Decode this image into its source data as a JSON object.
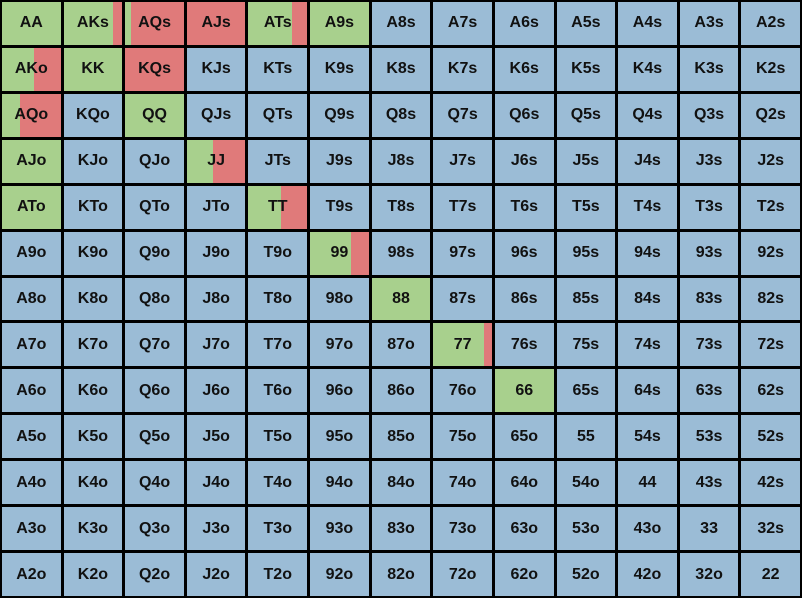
{
  "colors": {
    "green": "#a8d08d",
    "red": "#e07a7a",
    "blue": "#9bbcd6"
  },
  "hand_matrix": {
    "rows": [
      [
        {
          "hand": "AA",
          "green": 1,
          "red": 0
        },
        {
          "hand": "AKs",
          "green": 0.85,
          "red": 0.15
        },
        {
          "hand": "AQs",
          "green": 0.1,
          "red": 0.9
        },
        {
          "hand": "AJs",
          "green": 0,
          "red": 1
        },
        {
          "hand": "ATs",
          "green": 0.75,
          "red": 0.25
        },
        {
          "hand": "A9s",
          "green": 1,
          "red": 0
        },
        {
          "hand": "A8s",
          "green": 0,
          "red": 0
        },
        {
          "hand": "A7s",
          "green": 0,
          "red": 0
        },
        {
          "hand": "A6s",
          "green": 0,
          "red": 0
        },
        {
          "hand": "A5s",
          "green": 0,
          "red": 0
        },
        {
          "hand": "A4s",
          "green": 0,
          "red": 0
        },
        {
          "hand": "A3s",
          "green": 0,
          "red": 0
        },
        {
          "hand": "A2s",
          "green": 0,
          "red": 0
        }
      ],
      [
        {
          "hand": "AKo",
          "green": 0.55,
          "red": 0.45
        },
        {
          "hand": "KK",
          "green": 1,
          "red": 0
        },
        {
          "hand": "KQs",
          "green": 0,
          "red": 1
        },
        {
          "hand": "KJs",
          "green": 0,
          "red": 0
        },
        {
          "hand": "KTs",
          "green": 0,
          "red": 0
        },
        {
          "hand": "K9s",
          "green": 0,
          "red": 0
        },
        {
          "hand": "K8s",
          "green": 0,
          "red": 0
        },
        {
          "hand": "K7s",
          "green": 0,
          "red": 0
        },
        {
          "hand": "K6s",
          "green": 0,
          "red": 0
        },
        {
          "hand": "K5s",
          "green": 0,
          "red": 0
        },
        {
          "hand": "K4s",
          "green": 0,
          "red": 0
        },
        {
          "hand": "K3s",
          "green": 0,
          "red": 0
        },
        {
          "hand": "K2s",
          "green": 0,
          "red": 0
        }
      ],
      [
        {
          "hand": "AQo",
          "green": 0.3,
          "red": 0.7
        },
        {
          "hand": "KQo",
          "green": 0,
          "red": 0
        },
        {
          "hand": "QQ",
          "green": 1,
          "red": 0
        },
        {
          "hand": "QJs",
          "green": 0,
          "red": 0
        },
        {
          "hand": "QTs",
          "green": 0,
          "red": 0
        },
        {
          "hand": "Q9s",
          "green": 0,
          "red": 0
        },
        {
          "hand": "Q8s",
          "green": 0,
          "red": 0
        },
        {
          "hand": "Q7s",
          "green": 0,
          "red": 0
        },
        {
          "hand": "Q6s",
          "green": 0,
          "red": 0
        },
        {
          "hand": "Q5s",
          "green": 0,
          "red": 0
        },
        {
          "hand": "Q4s",
          "green": 0,
          "red": 0
        },
        {
          "hand": "Q3s",
          "green": 0,
          "red": 0
        },
        {
          "hand": "Q2s",
          "green": 0,
          "red": 0
        }
      ],
      [
        {
          "hand": "AJo",
          "green": 1,
          "red": 0
        },
        {
          "hand": "KJo",
          "green": 0,
          "red": 0
        },
        {
          "hand": "QJo",
          "green": 0,
          "red": 0
        },
        {
          "hand": "JJ",
          "green": 0.45,
          "red": 0.55
        },
        {
          "hand": "JTs",
          "green": 0,
          "red": 0
        },
        {
          "hand": "J9s",
          "green": 0,
          "red": 0
        },
        {
          "hand": "J8s",
          "green": 0,
          "red": 0
        },
        {
          "hand": "J7s",
          "green": 0,
          "red": 0
        },
        {
          "hand": "J6s",
          "green": 0,
          "red": 0
        },
        {
          "hand": "J5s",
          "green": 0,
          "red": 0
        },
        {
          "hand": "J4s",
          "green": 0,
          "red": 0
        },
        {
          "hand": "J3s",
          "green": 0,
          "red": 0
        },
        {
          "hand": "J2s",
          "green": 0,
          "red": 0
        }
      ],
      [
        {
          "hand": "ATo",
          "green": 1,
          "red": 0
        },
        {
          "hand": "KTo",
          "green": 0,
          "red": 0
        },
        {
          "hand": "QTo",
          "green": 0,
          "red": 0
        },
        {
          "hand": "JTo",
          "green": 0,
          "red": 0
        },
        {
          "hand": "TT",
          "green": 0.55,
          "red": 0.45
        },
        {
          "hand": "T9s",
          "green": 0,
          "red": 0
        },
        {
          "hand": "T8s",
          "green": 0,
          "red": 0
        },
        {
          "hand": "T7s",
          "green": 0,
          "red": 0
        },
        {
          "hand": "T6s",
          "green": 0,
          "red": 0
        },
        {
          "hand": "T5s",
          "green": 0,
          "red": 0
        },
        {
          "hand": "T4s",
          "green": 0,
          "red": 0
        },
        {
          "hand": "T3s",
          "green": 0,
          "red": 0
        },
        {
          "hand": "T2s",
          "green": 0,
          "red": 0
        }
      ],
      [
        {
          "hand": "A9o",
          "green": 0,
          "red": 0
        },
        {
          "hand": "K9o",
          "green": 0,
          "red": 0
        },
        {
          "hand": "Q9o",
          "green": 0,
          "red": 0
        },
        {
          "hand": "J9o",
          "green": 0,
          "red": 0
        },
        {
          "hand": "T9o",
          "green": 0,
          "red": 0
        },
        {
          "hand": "99",
          "green": 0.7,
          "red": 0.3
        },
        {
          "hand": "98s",
          "green": 0,
          "red": 0
        },
        {
          "hand": "97s",
          "green": 0,
          "red": 0
        },
        {
          "hand": "96s",
          "green": 0,
          "red": 0
        },
        {
          "hand": "95s",
          "green": 0,
          "red": 0
        },
        {
          "hand": "94s",
          "green": 0,
          "red": 0
        },
        {
          "hand": "93s",
          "green": 0,
          "red": 0
        },
        {
          "hand": "92s",
          "green": 0,
          "red": 0
        }
      ],
      [
        {
          "hand": "A8o",
          "green": 0,
          "red": 0
        },
        {
          "hand": "K8o",
          "green": 0,
          "red": 0
        },
        {
          "hand": "Q8o",
          "green": 0,
          "red": 0
        },
        {
          "hand": "J8o",
          "green": 0,
          "red": 0
        },
        {
          "hand": "T8o",
          "green": 0,
          "red": 0
        },
        {
          "hand": "98o",
          "green": 0,
          "red": 0
        },
        {
          "hand": "88",
          "green": 1,
          "red": 0
        },
        {
          "hand": "87s",
          "green": 0,
          "red": 0
        },
        {
          "hand": "86s",
          "green": 0,
          "red": 0
        },
        {
          "hand": "85s",
          "green": 0,
          "red": 0
        },
        {
          "hand": "84s",
          "green": 0,
          "red": 0
        },
        {
          "hand": "83s",
          "green": 0,
          "red": 0
        },
        {
          "hand": "82s",
          "green": 0,
          "red": 0
        }
      ],
      [
        {
          "hand": "A7o",
          "green": 0,
          "red": 0
        },
        {
          "hand": "K7o",
          "green": 0,
          "red": 0
        },
        {
          "hand": "Q7o",
          "green": 0,
          "red": 0
        },
        {
          "hand": "J7o",
          "green": 0,
          "red": 0
        },
        {
          "hand": "T7o",
          "green": 0,
          "red": 0
        },
        {
          "hand": "97o",
          "green": 0,
          "red": 0
        },
        {
          "hand": "87o",
          "green": 0,
          "red": 0
        },
        {
          "hand": "77",
          "green": 0.87,
          "red": 0.13
        },
        {
          "hand": "76s",
          "green": 0,
          "red": 0
        },
        {
          "hand": "75s",
          "green": 0,
          "red": 0
        },
        {
          "hand": "74s",
          "green": 0,
          "red": 0
        },
        {
          "hand": "73s",
          "green": 0,
          "red": 0
        },
        {
          "hand": "72s",
          "green": 0,
          "red": 0
        }
      ],
      [
        {
          "hand": "A6o",
          "green": 0,
          "red": 0
        },
        {
          "hand": "K6o",
          "green": 0,
          "red": 0
        },
        {
          "hand": "Q6o",
          "green": 0,
          "red": 0
        },
        {
          "hand": "J6o",
          "green": 0,
          "red": 0
        },
        {
          "hand": "T6o",
          "green": 0,
          "red": 0
        },
        {
          "hand": "96o",
          "green": 0,
          "red": 0
        },
        {
          "hand": "86o",
          "green": 0,
          "red": 0
        },
        {
          "hand": "76o",
          "green": 0,
          "red": 0
        },
        {
          "hand": "66",
          "green": 1,
          "red": 0
        },
        {
          "hand": "65s",
          "green": 0,
          "red": 0
        },
        {
          "hand": "64s",
          "green": 0,
          "red": 0
        },
        {
          "hand": "63s",
          "green": 0,
          "red": 0
        },
        {
          "hand": "62s",
          "green": 0,
          "red": 0
        }
      ],
      [
        {
          "hand": "A5o",
          "green": 0,
          "red": 0
        },
        {
          "hand": "K5o",
          "green": 0,
          "red": 0
        },
        {
          "hand": "Q5o",
          "green": 0,
          "red": 0
        },
        {
          "hand": "J5o",
          "green": 0,
          "red": 0
        },
        {
          "hand": "T5o",
          "green": 0,
          "red": 0
        },
        {
          "hand": "95o",
          "green": 0,
          "red": 0
        },
        {
          "hand": "85o",
          "green": 0,
          "red": 0
        },
        {
          "hand": "75o",
          "green": 0,
          "red": 0
        },
        {
          "hand": "65o",
          "green": 0,
          "red": 0
        },
        {
          "hand": "55",
          "green": 0,
          "red": 0
        },
        {
          "hand": "54s",
          "green": 0,
          "red": 0
        },
        {
          "hand": "53s",
          "green": 0,
          "red": 0
        },
        {
          "hand": "52s",
          "green": 0,
          "red": 0
        }
      ],
      [
        {
          "hand": "A4o",
          "green": 0,
          "red": 0
        },
        {
          "hand": "K4o",
          "green": 0,
          "red": 0
        },
        {
          "hand": "Q4o",
          "green": 0,
          "red": 0
        },
        {
          "hand": "J4o",
          "green": 0,
          "red": 0
        },
        {
          "hand": "T4o",
          "green": 0,
          "red": 0
        },
        {
          "hand": "94o",
          "green": 0,
          "red": 0
        },
        {
          "hand": "84o",
          "green": 0,
          "red": 0
        },
        {
          "hand": "74o",
          "green": 0,
          "red": 0
        },
        {
          "hand": "64o",
          "green": 0,
          "red": 0
        },
        {
          "hand": "54o",
          "green": 0,
          "red": 0
        },
        {
          "hand": "44",
          "green": 0,
          "red": 0
        },
        {
          "hand": "43s",
          "green": 0,
          "red": 0
        },
        {
          "hand": "42s",
          "green": 0,
          "red": 0
        }
      ],
      [
        {
          "hand": "A3o",
          "green": 0,
          "red": 0
        },
        {
          "hand": "K3o",
          "green": 0,
          "red": 0
        },
        {
          "hand": "Q3o",
          "green": 0,
          "red": 0
        },
        {
          "hand": "J3o",
          "green": 0,
          "red": 0
        },
        {
          "hand": "T3o",
          "green": 0,
          "red": 0
        },
        {
          "hand": "93o",
          "green": 0,
          "red": 0
        },
        {
          "hand": "83o",
          "green": 0,
          "red": 0
        },
        {
          "hand": "73o",
          "green": 0,
          "red": 0
        },
        {
          "hand": "63o",
          "green": 0,
          "red": 0
        },
        {
          "hand": "53o",
          "green": 0,
          "red": 0
        },
        {
          "hand": "43o",
          "green": 0,
          "red": 0
        },
        {
          "hand": "33",
          "green": 0,
          "red": 0
        },
        {
          "hand": "32s",
          "green": 0,
          "red": 0
        }
      ],
      [
        {
          "hand": "A2o",
          "green": 0,
          "red": 0
        },
        {
          "hand": "K2o",
          "green": 0,
          "red": 0
        },
        {
          "hand": "Q2o",
          "green": 0,
          "red": 0
        },
        {
          "hand": "J2o",
          "green": 0,
          "red": 0
        },
        {
          "hand": "T2o",
          "green": 0,
          "red": 0
        },
        {
          "hand": "92o",
          "green": 0,
          "red": 0
        },
        {
          "hand": "82o",
          "green": 0,
          "red": 0
        },
        {
          "hand": "72o",
          "green": 0,
          "red": 0
        },
        {
          "hand": "62o",
          "green": 0,
          "red": 0
        },
        {
          "hand": "52o",
          "green": 0,
          "red": 0
        },
        {
          "hand": "42o",
          "green": 0,
          "red": 0
        },
        {
          "hand": "32o",
          "green": 0,
          "red": 0
        },
        {
          "hand": "22",
          "green": 0,
          "red": 0
        }
      ]
    ]
  }
}
